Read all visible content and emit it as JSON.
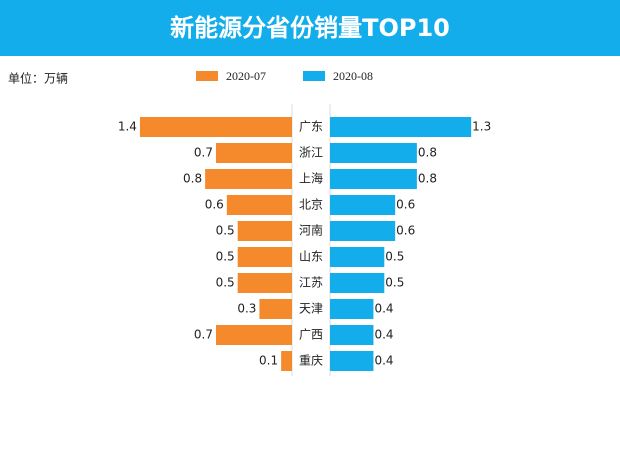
{
  "chart_data": {
    "type": "bar",
    "title": "新能源分省份销量TOP10",
    "unit": "单位：万辆",
    "categories": [
      "广东",
      "浙江",
      "上海",
      "北京",
      "河南",
      "山东",
      "江苏",
      "天津",
      "广西",
      "重庆"
    ],
    "series": [
      {
        "name": "2020-07",
        "color": "#f48a2c",
        "values": [
          1.4,
          0.7,
          0.8,
          0.6,
          0.5,
          0.5,
          0.5,
          0.3,
          0.7,
          0.1
        ]
      },
      {
        "name": "2020-08",
        "color": "#12adea",
        "values": [
          1.3,
          0.8,
          0.8,
          0.6,
          0.6,
          0.5,
          0.5,
          0.4,
          0.4,
          0.4
        ]
      }
    ]
  }
}
